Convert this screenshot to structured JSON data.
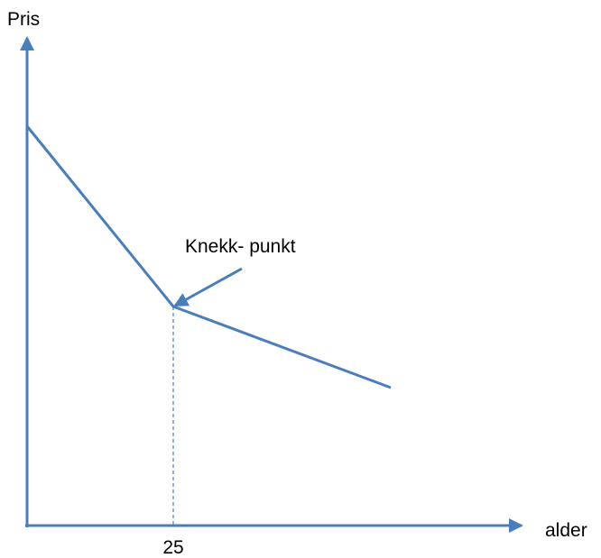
{
  "axes": {
    "y_label": "Pris",
    "x_label": "alder"
  },
  "marker": {
    "label": 25
  },
  "annotation": {
    "label": "Knekk- punkt"
  }
}
